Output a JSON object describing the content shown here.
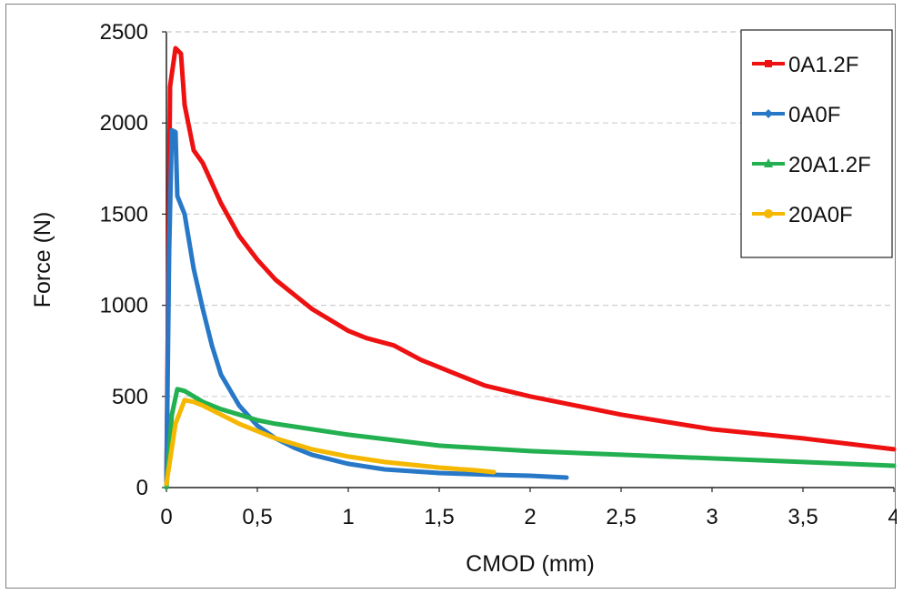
{
  "chart_data": {
    "type": "line",
    "xlabel": "CMOD (mm)",
    "ylabel": "Force (N)",
    "xlim": [
      0,
      4
    ],
    "ylim": [
      0,
      2500
    ],
    "x_ticks": [
      0,
      0.5,
      1,
      1.5,
      2,
      2.5,
      3,
      3.5,
      4
    ],
    "x_tick_labels": [
      "0",
      "0,5",
      "1",
      "1,5",
      "2",
      "2,5",
      "3",
      "3,5",
      "4"
    ],
    "y_ticks": [
      0,
      500,
      1000,
      1500,
      2000,
      2500
    ],
    "y_tick_labels": [
      "0",
      "500",
      "1000",
      "1500",
      "2000",
      "2500"
    ],
    "grid": "horizontal dashed",
    "legend_position": "top-right",
    "series": [
      {
        "name": "0A1.2F",
        "color": "#ee1111",
        "marker": "square",
        "points": [
          [
            0,
            20
          ],
          [
            0.02,
            2200
          ],
          [
            0.05,
            2410
          ],
          [
            0.08,
            2380
          ],
          [
            0.1,
            2100
          ],
          [
            0.15,
            1850
          ],
          [
            0.2,
            1780
          ],
          [
            0.3,
            1560
          ],
          [
            0.4,
            1380
          ],
          [
            0.5,
            1250
          ],
          [
            0.6,
            1140
          ],
          [
            0.7,
            1060
          ],
          [
            0.8,
            980
          ],
          [
            0.9,
            920
          ],
          [
            1.0,
            860
          ],
          [
            1.1,
            820
          ],
          [
            1.25,
            780
          ],
          [
            1.4,
            700
          ],
          [
            1.5,
            660
          ],
          [
            1.75,
            560
          ],
          [
            2.0,
            500
          ],
          [
            2.25,
            450
          ],
          [
            2.5,
            400
          ],
          [
            3.0,
            320
          ],
          [
            3.5,
            270
          ],
          [
            4.0,
            210
          ]
        ]
      },
      {
        "name": "0A0F",
        "color": "#2878c8",
        "marker": "diamond",
        "points": [
          [
            0,
            20
          ],
          [
            0.015,
            1300
          ],
          [
            0.03,
            1960
          ],
          [
            0.05,
            1950
          ],
          [
            0.06,
            1600
          ],
          [
            0.1,
            1500
          ],
          [
            0.15,
            1200
          ],
          [
            0.2,
            980
          ],
          [
            0.25,
            780
          ],
          [
            0.3,
            620
          ],
          [
            0.4,
            450
          ],
          [
            0.5,
            340
          ],
          [
            0.6,
            270
          ],
          [
            0.7,
            220
          ],
          [
            0.8,
            180
          ],
          [
            1.0,
            130
          ],
          [
            1.2,
            100
          ],
          [
            1.5,
            80
          ],
          [
            1.8,
            70
          ],
          [
            2.0,
            65
          ],
          [
            2.2,
            55
          ]
        ]
      },
      {
        "name": "20A1.2F",
        "color": "#22b050",
        "marker": "triangle",
        "points": [
          [
            0,
            0
          ],
          [
            0.03,
            400
          ],
          [
            0.06,
            540
          ],
          [
            0.1,
            530
          ],
          [
            0.2,
            470
          ],
          [
            0.3,
            430
          ],
          [
            0.4,
            400
          ],
          [
            0.5,
            370
          ],
          [
            0.6,
            350
          ],
          [
            0.8,
            320
          ],
          [
            1.0,
            290
          ],
          [
            1.25,
            260
          ],
          [
            1.5,
            230
          ],
          [
            2.0,
            200
          ],
          [
            2.5,
            180
          ],
          [
            3.0,
            160
          ],
          [
            3.5,
            140
          ],
          [
            4.0,
            120
          ]
        ]
      },
      {
        "name": "20A0F",
        "color": "#f5b700",
        "marker": "circle",
        "points": [
          [
            0,
            20
          ],
          [
            0.05,
            350
          ],
          [
            0.1,
            480
          ],
          [
            0.15,
            470
          ],
          [
            0.2,
            450
          ],
          [
            0.3,
            400
          ],
          [
            0.4,
            350
          ],
          [
            0.5,
            310
          ],
          [
            0.6,
            270
          ],
          [
            0.7,
            240
          ],
          [
            0.8,
            210
          ],
          [
            1.0,
            170
          ],
          [
            1.2,
            140
          ],
          [
            1.5,
            110
          ],
          [
            1.7,
            95
          ],
          [
            1.8,
            85
          ]
        ]
      }
    ]
  }
}
